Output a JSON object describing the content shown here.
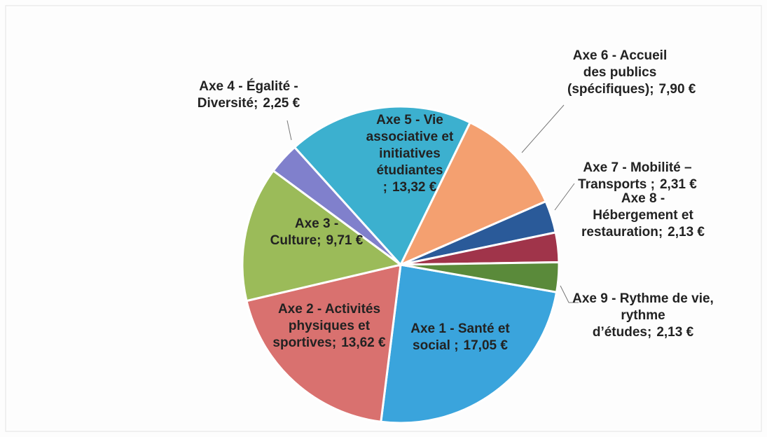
{
  "chart_data": {
    "type": "pie",
    "categories": [
      "Axe 1 - Santé et social ;",
      "Axe 2 - Activités physiques et sportives;",
      "Axe 3 - Culture;",
      "Axe 4 - Égalité - Diversité;",
      "Axe 5 - Vie associative et initiatives étudiantes ;",
      "Axe 6 - Accueil des publics (spécifiques);",
      "Axe 7 - Mobilité – Transports ;",
      "Axe 8 - Hébergement et restauration;",
      "Axe 9 - Rythme de vie, rythme d’études;"
    ],
    "values": [
      17.05,
      13.62,
      9.71,
      2.25,
      13.32,
      7.9,
      2.31,
      2.13,
      2.13
    ],
    "value_labels": [
      "17,05 €",
      "13,62 €",
      "9,71 €",
      "2,25 €",
      "13,32 €",
      "7,90 €",
      "2,31 €",
      "2,13 €",
      "2,13 €"
    ],
    "colors": [
      "#3aa4dc",
      "#d9716f",
      "#9bbb59",
      "#8080cc",
      "#3cb0cf",
      "#f4a070",
      "#2a5a99",
      "#a0344a",
      "#5a8a3a"
    ]
  }
}
